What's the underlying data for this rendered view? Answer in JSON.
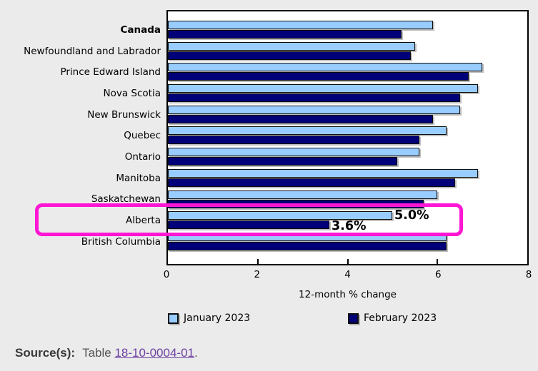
{
  "chart_data": {
    "type": "bar",
    "orientation": "horizontal",
    "title": "",
    "xlabel": "12-month % change",
    "xlim": [
      0,
      8
    ],
    "xticks": [
      0,
      2,
      4,
      6,
      8
    ],
    "grid": false,
    "legend_position": "bottom",
    "emphasis": "Canada",
    "categories": [
      "Canada",
      "Newfoundland and Labrador",
      "Prince Edward Island",
      "Nova Scotia",
      "New Brunswick",
      "Quebec",
      "Ontario",
      "Manitoba",
      "Saskatchewan",
      "Alberta",
      "British Columbia"
    ],
    "series": [
      {
        "name": "January 2023",
        "color": "#99ccff",
        "values": [
          5.9,
          5.5,
          7.0,
          6.9,
          6.5,
          6.2,
          5.6,
          6.9,
          6.0,
          5.0,
          6.2
        ]
      },
      {
        "name": "February 2023",
        "color": "#000078",
        "values": [
          5.2,
          5.4,
          6.7,
          6.5,
          5.9,
          5.6,
          5.1,
          6.4,
          5.7,
          3.6,
          6.2
        ]
      }
    ],
    "highlight": {
      "category": "Alberta",
      "box_color": "#ff16d4",
      "labels": {
        "january": "5.0%",
        "february": "3.6%"
      }
    }
  },
  "legend": {
    "items": [
      {
        "label": "January 2023",
        "color": "#99ccff"
      },
      {
        "label": "February 2023",
        "color": "#000078"
      }
    ]
  },
  "source": {
    "prefix": "Source(s):",
    "text": "Table ",
    "link": "18-10-0004-01",
    "suffix": ".",
    "link_color": "#6f42a3"
  }
}
